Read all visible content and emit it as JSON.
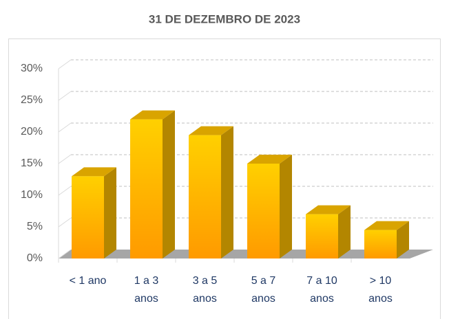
{
  "chart_data": {
    "type": "bar3d",
    "title": "31 DE DEZEMBRO DE 2023",
    "categories": [
      "< 1 ano",
      "1 a 3 anos",
      "3 a 5 anos",
      "5 a 7 anos",
      "7 a 10 anos",
      "> 10 anos"
    ],
    "values": [
      13,
      22,
      19.5,
      15,
      7,
      4.5
    ],
    "color": "#ffb000",
    "ylim": [
      0,
      30
    ],
    "yticks": [
      {
        "value": 0,
        "label": "0%"
      },
      {
        "value": 5,
        "label": "5%"
      },
      {
        "value": 10,
        "label": "10%"
      },
      {
        "value": 15,
        "label": "15%"
      },
      {
        "value": 20,
        "label": "20%"
      },
      {
        "value": 25,
        "label": "25%"
      },
      {
        "value": 30,
        "label": "30%"
      }
    ],
    "grid": true
  }
}
